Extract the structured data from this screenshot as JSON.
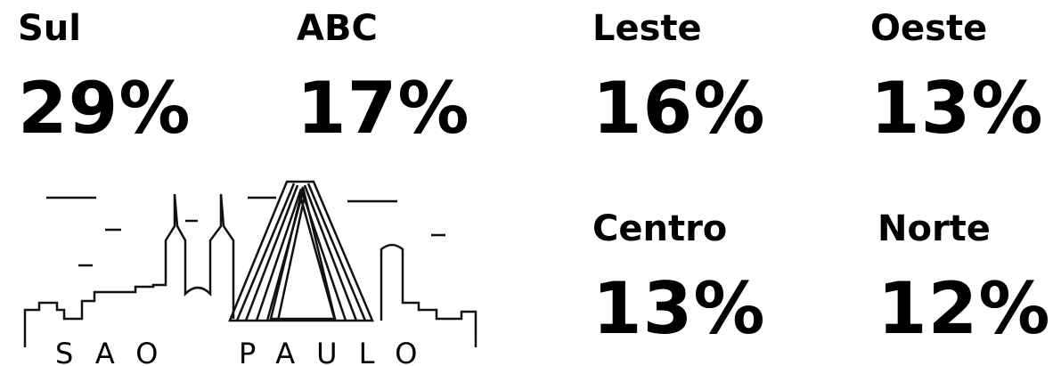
{
  "stats": [
    {
      "label": "Sul",
      "value": "29%"
    },
    {
      "label": "ABC",
      "value": "17%"
    },
    {
      "label": "Leste",
      "value": "16%"
    },
    {
      "label": "Oeste",
      "value": "13%"
    },
    {
      "label": "Centro",
      "value": "13%"
    },
    {
      "label": "Norte",
      "value": "12%"
    }
  ],
  "skyline": {
    "caption_1": "SAO",
    "caption_2": "PAULO"
  }
}
